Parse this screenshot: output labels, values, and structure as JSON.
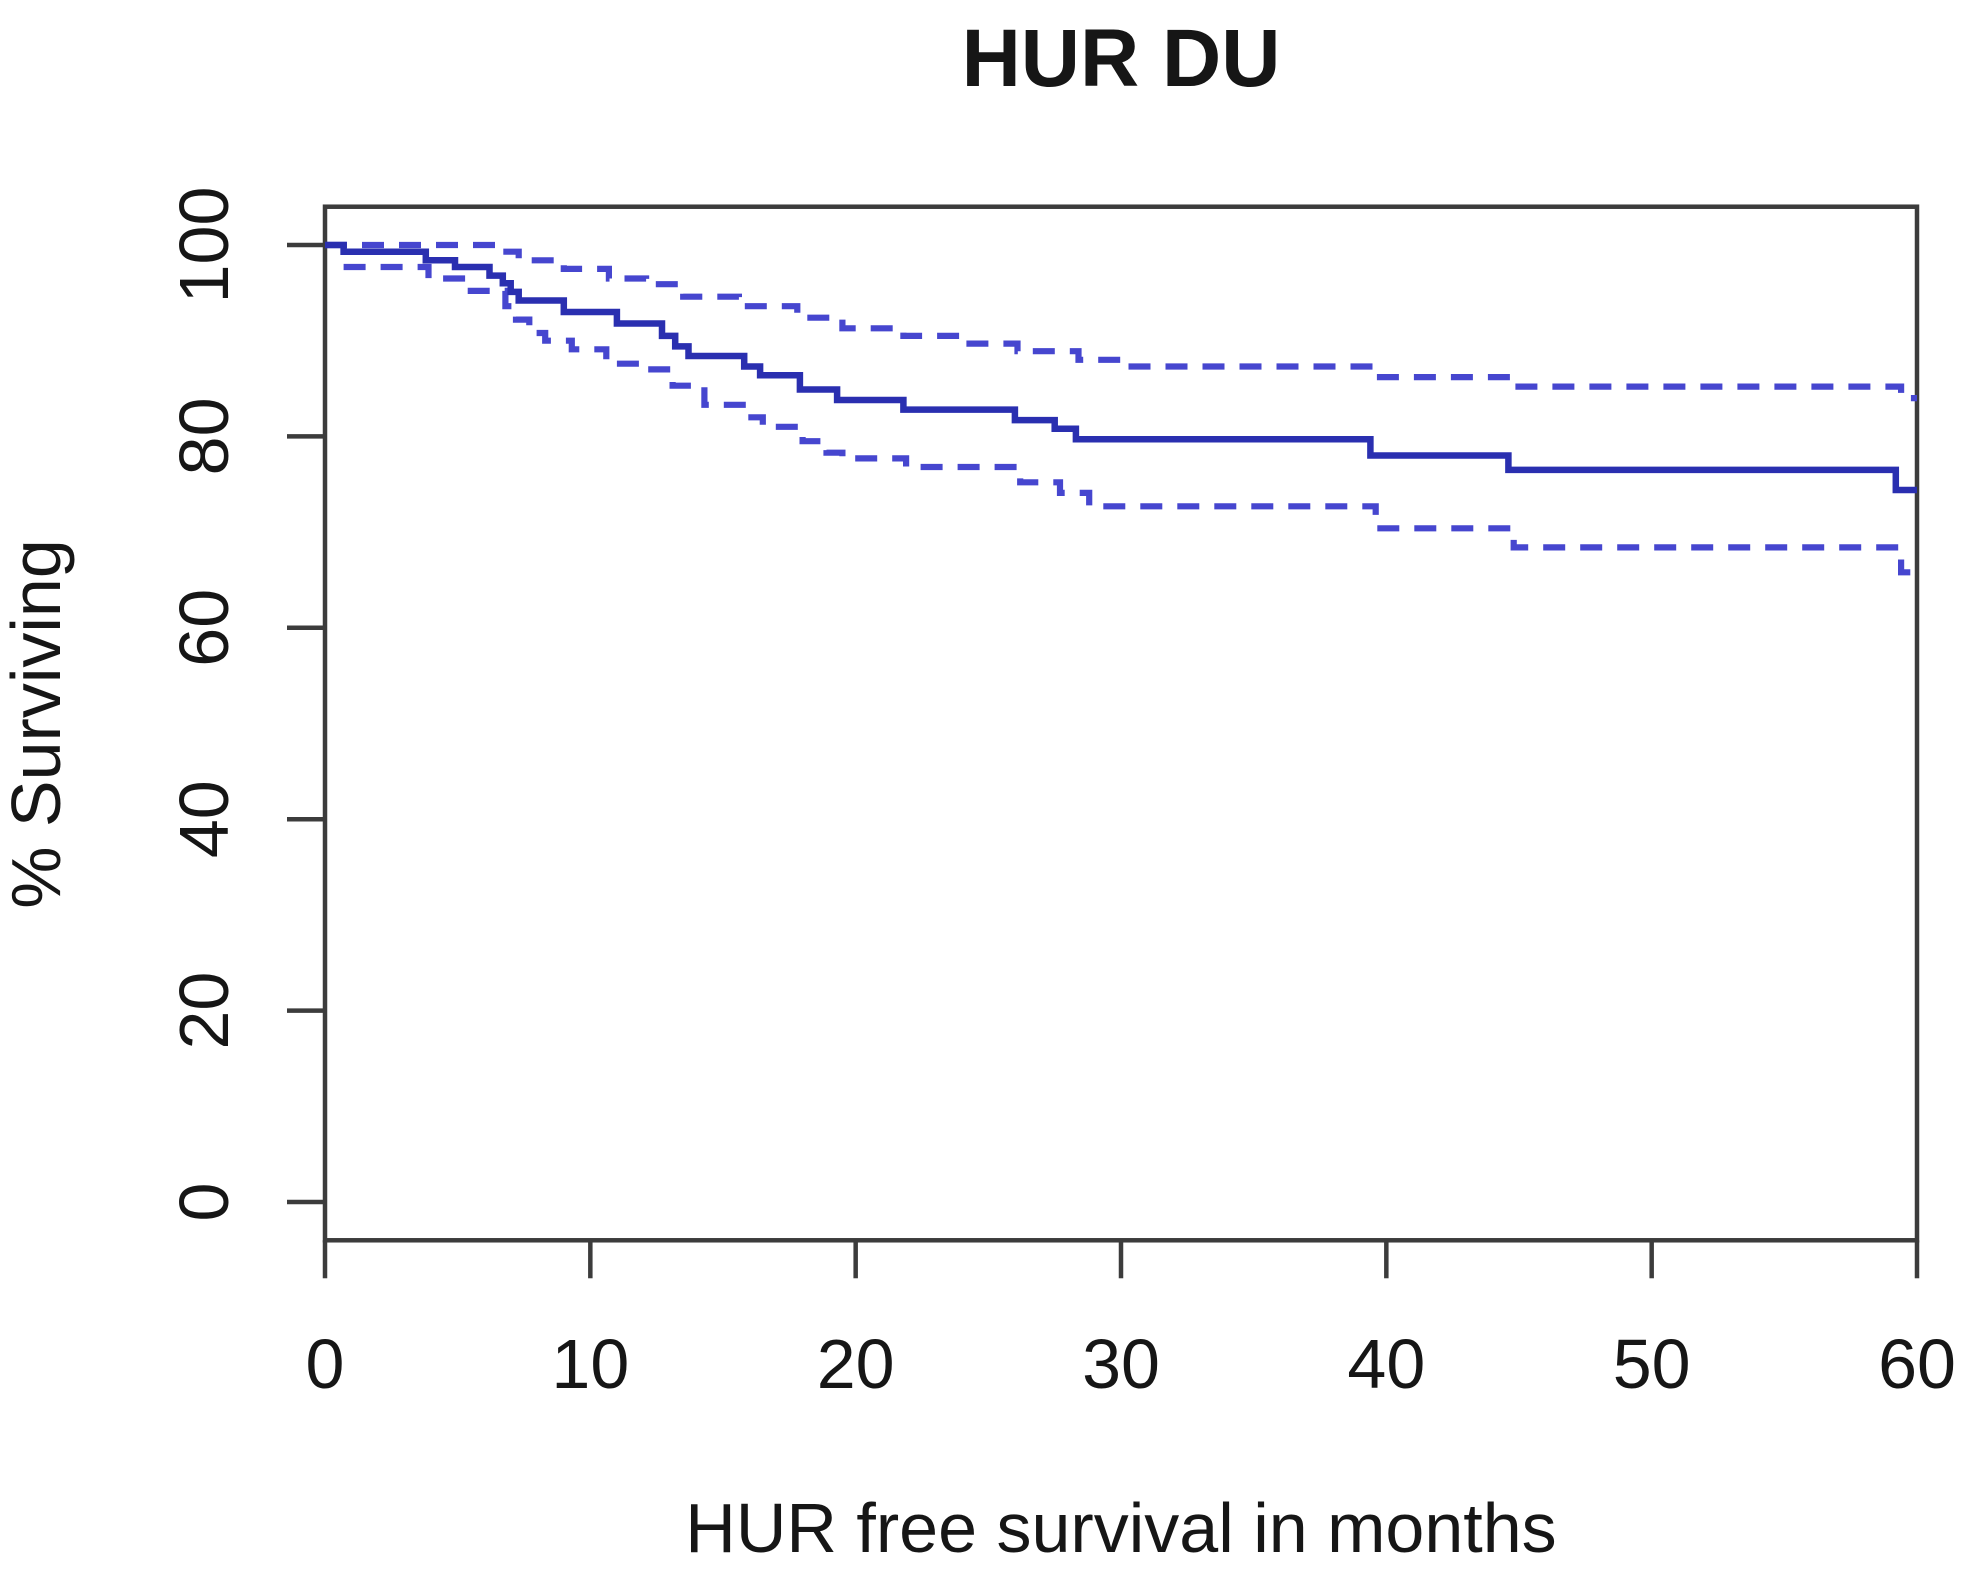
{
  "figure": {
    "title": "HUR DU",
    "xlabel": "HUR free survival in months",
    "ylabel": "% Surviving"
  },
  "axes": {
    "x_ticks": [
      0,
      10,
      20,
      30,
      40,
      50,
      60
    ],
    "y_ticks": [
      0,
      20,
      40,
      60,
      80,
      100
    ],
    "xlim": [
      0,
      60
    ],
    "ylim": [
      0,
      100
    ]
  },
  "colors": {
    "solid_line": "#2a2fb0",
    "dashed_line": "#4646cf",
    "axis": "#3c3c3c",
    "text": "#161616",
    "background": "#ffffff"
  },
  "chart_data": {
    "type": "line",
    "subtype": "kaplan-meier-step",
    "title": "HUR DU",
    "xlabel": "HUR free survival in months",
    "ylabel": "% Surviving",
    "xlim": [
      0,
      60
    ],
    "ylim": [
      0,
      100
    ],
    "grid": false,
    "legend": "none",
    "series": [
      {
        "name": "survival-estimate",
        "style": "solid",
        "points": [
          [
            0,
            100
          ],
          [
            0.7,
            99.3
          ],
          [
            3.8,
            98.4
          ],
          [
            4.9,
            97.7
          ],
          [
            6.2,
            96.8
          ],
          [
            6.7,
            96.0
          ],
          [
            7.0,
            95.1
          ],
          [
            7.3,
            94.2
          ],
          [
            9.0,
            93.0
          ],
          [
            11.0,
            91.8
          ],
          [
            12.7,
            90.5
          ],
          [
            13.2,
            89.4
          ],
          [
            13.7,
            88.4
          ],
          [
            15.8,
            87.3
          ],
          [
            16.4,
            86.4
          ],
          [
            17.9,
            84.9
          ],
          [
            19.3,
            83.8
          ],
          [
            21.8,
            82.8
          ],
          [
            26.0,
            81.7
          ],
          [
            27.5,
            80.8
          ],
          [
            28.3,
            79.7
          ],
          [
            39.4,
            78.0
          ],
          [
            44.6,
            76.5
          ],
          [
            59.2,
            74.4
          ],
          [
            60,
            74.4
          ]
        ]
      },
      {
        "name": "upper-confidence-band",
        "style": "dashed",
        "points": [
          [
            0,
            100
          ],
          [
            6.5,
            99.3
          ],
          [
            7.3,
            98.4
          ],
          [
            9.0,
            97.5
          ],
          [
            10.7,
            96.5
          ],
          [
            12.1,
            95.9
          ],
          [
            13.5,
            94.6
          ],
          [
            15.6,
            93.6
          ],
          [
            17.8,
            92.4
          ],
          [
            19.5,
            91.3
          ],
          [
            21.8,
            90.5
          ],
          [
            23.9,
            89.7
          ],
          [
            26.1,
            88.9
          ],
          [
            28.4,
            88.0
          ],
          [
            30.2,
            87.3
          ],
          [
            39.5,
            86.2
          ],
          [
            44.7,
            85.2
          ],
          [
            59.4,
            84.0
          ],
          [
            60,
            84.0
          ]
        ]
      },
      {
        "name": "lower-confidence-band",
        "style": "dashed",
        "points": [
          [
            0.7,
            97.7
          ],
          [
            3.9,
            96.5
          ],
          [
            5.3,
            95.2
          ],
          [
            6.8,
            93.6
          ],
          [
            7.2,
            92.2
          ],
          [
            7.7,
            90.8
          ],
          [
            8.3,
            90.0
          ],
          [
            9.3,
            89.1
          ],
          [
            10.6,
            87.6
          ],
          [
            11.9,
            87.0
          ],
          [
            13.1,
            85.3
          ],
          [
            14.3,
            83.3
          ],
          [
            15.9,
            82.0
          ],
          [
            16.5,
            81.0
          ],
          [
            18.0,
            79.5
          ],
          [
            18.9,
            78.3
          ],
          [
            19.5,
            77.7
          ],
          [
            21.9,
            76.8
          ],
          [
            26.2,
            75.2
          ],
          [
            27.7,
            74.1
          ],
          [
            28.8,
            72.7
          ],
          [
            39.6,
            70.4
          ],
          [
            44.8,
            68.4
          ],
          [
            59.4,
            65.8
          ],
          [
            60,
            65.8
          ]
        ]
      }
    ]
  }
}
